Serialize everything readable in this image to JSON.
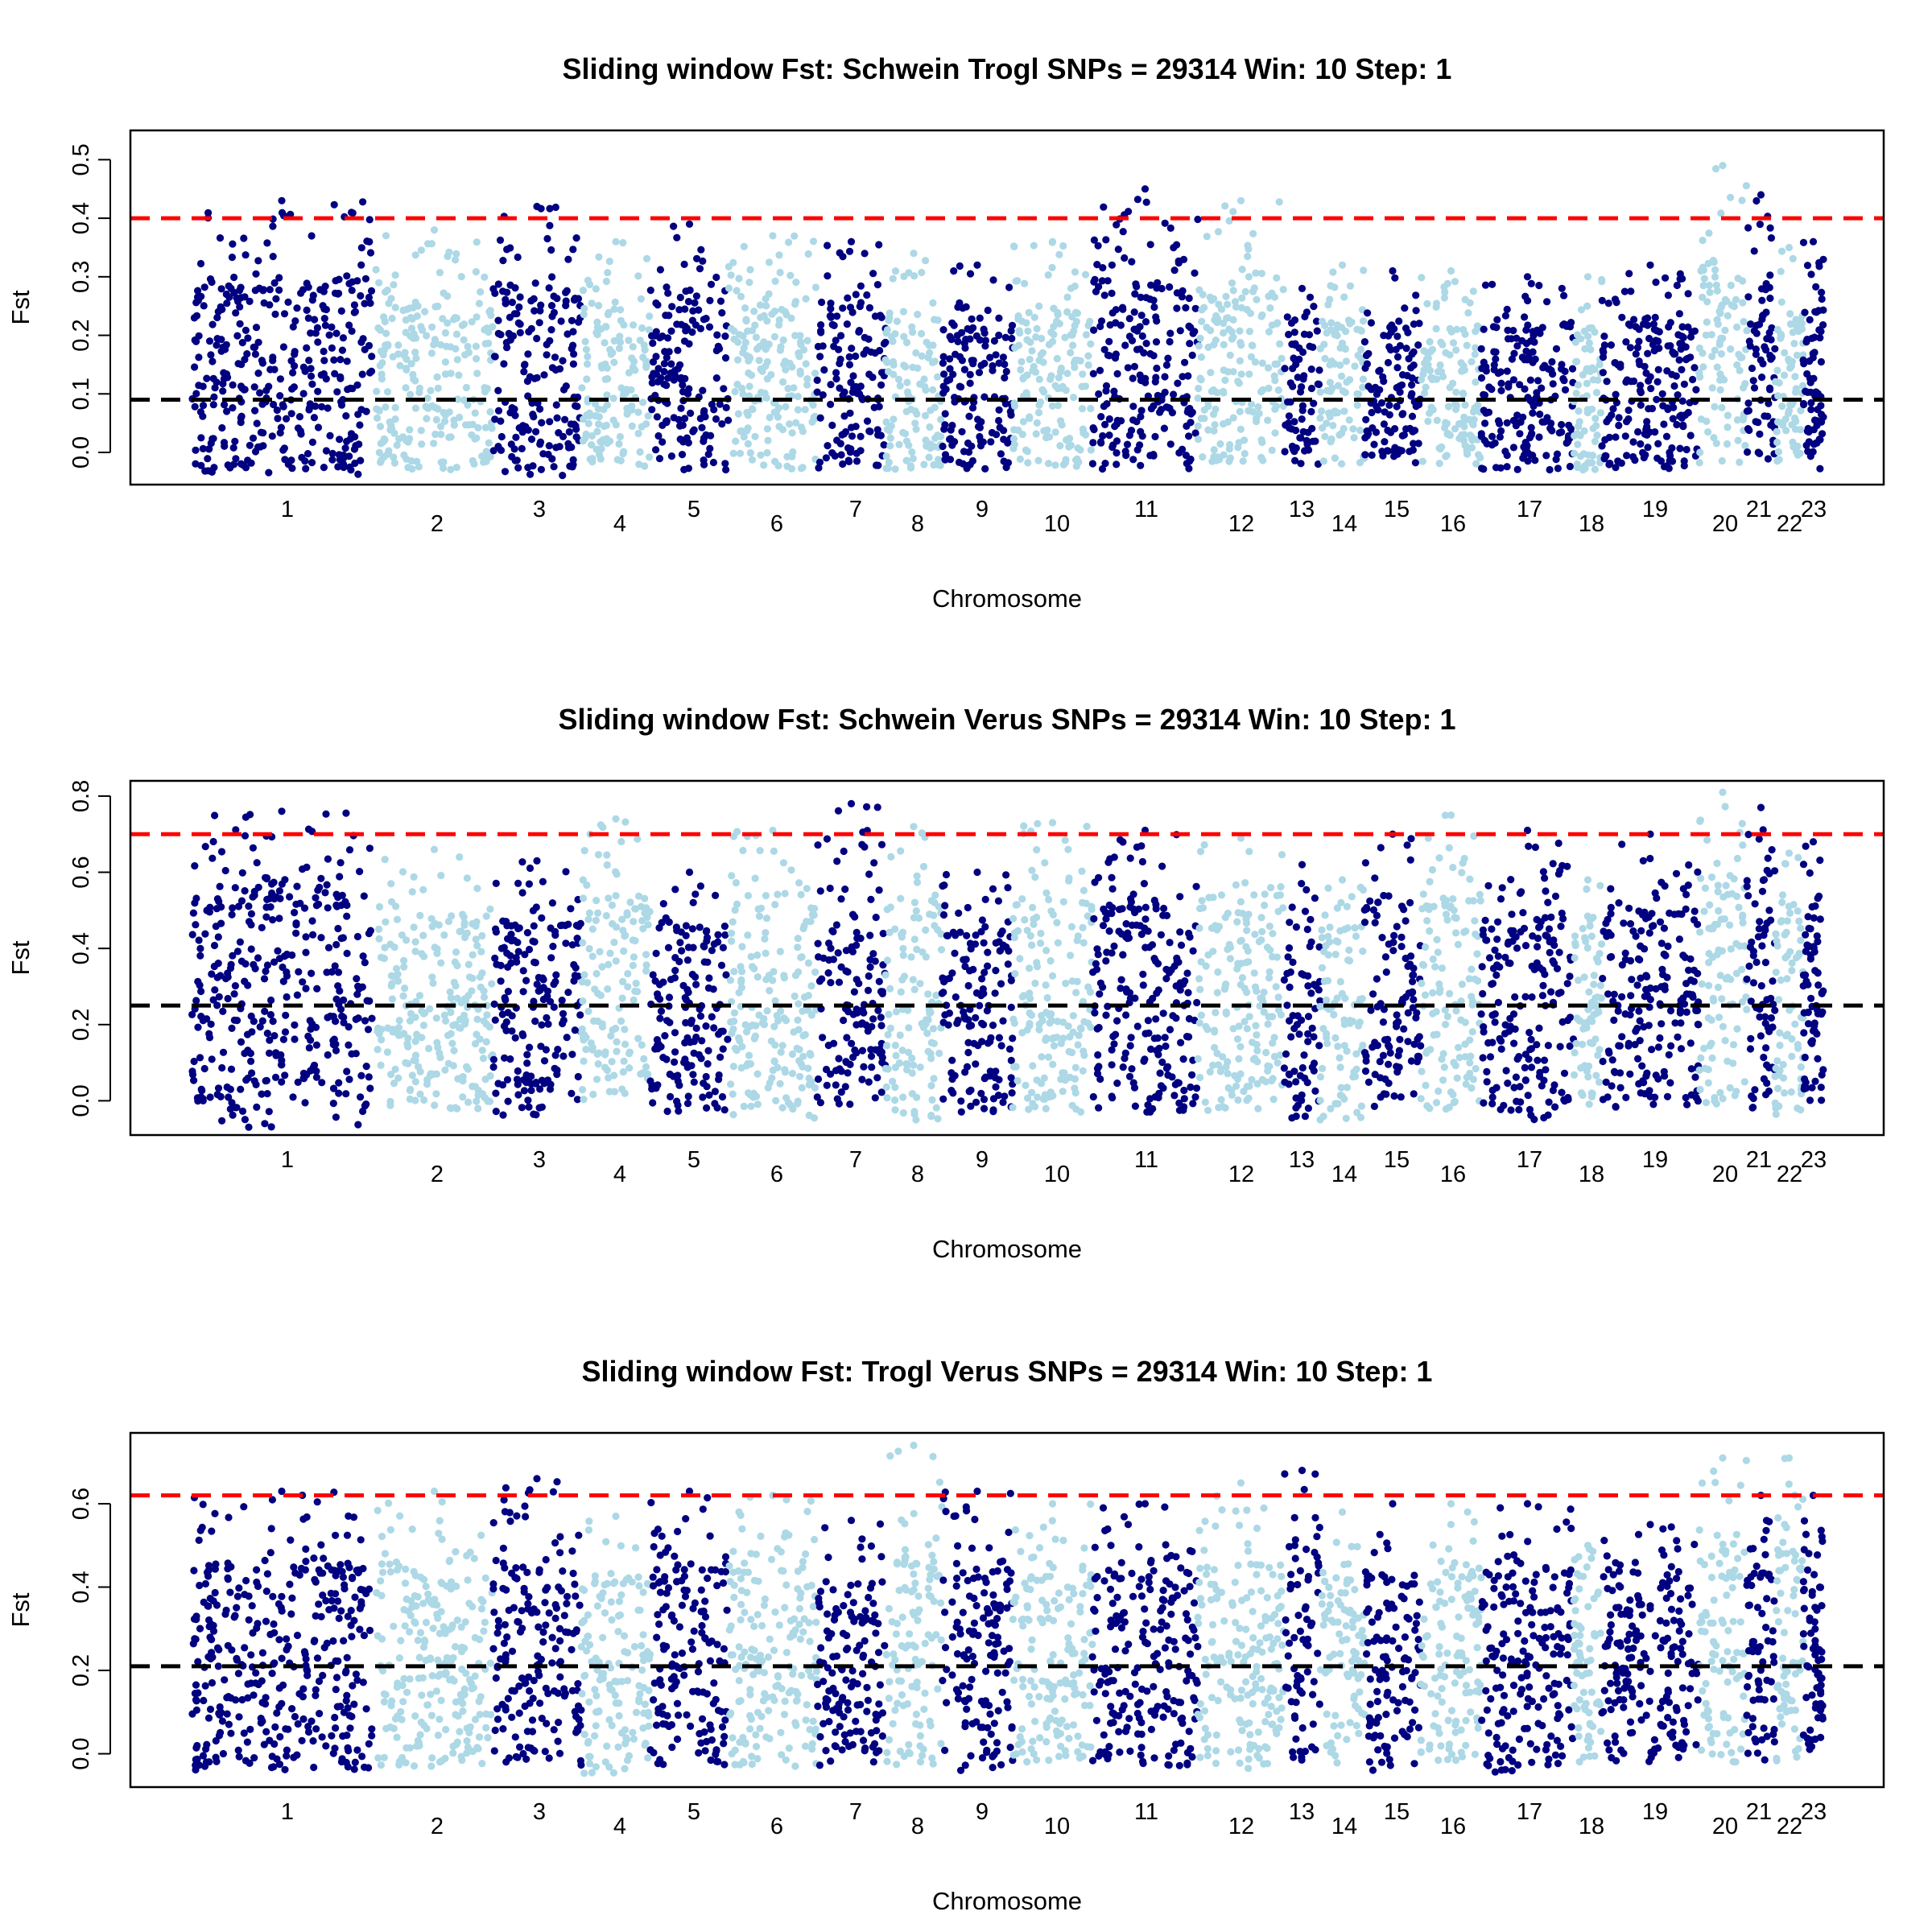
{
  "colors": {
    "dark": "#000080",
    "light": "#add8e6",
    "threshold": "#ff0000",
    "mean": "#000000"
  },
  "chart_data": [
    {
      "type": "scatter",
      "title": "Sliding window Fst: Schwein Trogl SNPs = 29314 Win:  10 Step:  1",
      "xlabel": "Chromosome",
      "ylabel": "Fst",
      "ylim": [
        -0.055,
        0.55
      ],
      "yticks": [
        "0.0",
        "0.1",
        "0.2",
        "0.3",
        "0.4",
        "0.5"
      ],
      "ytick_values": [
        0.0,
        0.1,
        0.2,
        0.3,
        0.4,
        0.5
      ],
      "threshold_line": 0.4,
      "mean_line": 0.09,
      "categories": [
        "1",
        "2",
        "3",
        "4",
        "5",
        "6",
        "7",
        "8",
        "9",
        "10",
        "11",
        "12",
        "13",
        "14",
        "15",
        "16",
        "17",
        "18",
        "19",
        "20",
        "21",
        "22",
        "23"
      ],
      "summary": {
        "min": [
          -0.04,
          -0.03,
          -0.04,
          -0.03,
          -0.03,
          -0.03,
          -0.03,
          -0.03,
          -0.03,
          -0.03,
          -0.03,
          -0.02,
          -0.02,
          -0.02,
          -0.02,
          -0.02,
          -0.03,
          -0.03,
          -0.03,
          -0.02,
          -0.02,
          -0.02,
          -0.03
        ],
        "max": [
          0.43,
          0.38,
          0.42,
          0.36,
          0.39,
          0.37,
          0.36,
          0.34,
          0.32,
          0.36,
          0.45,
          0.43,
          0.28,
          0.32,
          0.31,
          0.31,
          0.3,
          0.3,
          0.32,
          0.49,
          0.44,
          0.35,
          0.36
        ]
      },
      "grid": false,
      "legend": "none"
    },
    {
      "type": "scatter",
      "title": "Sliding window Fst: Schwein Verus SNPs = 29314 Win:  10 Step:  1",
      "xlabel": "Chromosome",
      "ylabel": "Fst",
      "ylim": [
        -0.09,
        0.84
      ],
      "yticks": [
        "0.0",
        "0.2",
        "0.4",
        "0.6",
        "0.8"
      ],
      "ytick_values": [
        0.0,
        0.2,
        0.4,
        0.6,
        0.8
      ],
      "threshold_line": 0.7,
      "mean_line": 0.25,
      "categories": [
        "1",
        "2",
        "3",
        "4",
        "5",
        "6",
        "7",
        "8",
        "9",
        "10",
        "11",
        "12",
        "13",
        "14",
        "15",
        "16",
        "17",
        "18",
        "19",
        "20",
        "21",
        "22",
        "23"
      ],
      "summary": {
        "min": [
          -0.07,
          -0.03,
          -0.04,
          0.0,
          -0.03,
          -0.05,
          -0.02,
          -0.05,
          -0.03,
          -0.03,
          -0.03,
          -0.03,
          -0.05,
          -0.05,
          -0.03,
          -0.03,
          -0.06,
          -0.03,
          -0.02,
          -0.02,
          -0.02,
          -0.05,
          0.0
        ],
        "max": [
          0.76,
          0.66,
          0.63,
          0.74,
          0.6,
          0.71,
          0.78,
          0.72,
          0.6,
          0.73,
          0.71,
          0.69,
          0.62,
          0.58,
          0.7,
          0.75,
          0.71,
          0.58,
          0.7,
          0.81,
          0.77,
          0.65,
          0.68
        ]
      },
      "grid": false,
      "legend": "none"
    },
    {
      "type": "scatter",
      "title": "Sliding window Fst: Trogl Verus SNPs = 29314 Win:  10 Step:  1",
      "xlabel": "Chromosome",
      "ylabel": "Fst",
      "ylim": [
        -0.08,
        0.77
      ],
      "yticks": [
        "0.0",
        "0.2",
        "0.4",
        "0.6"
      ],
      "ytick_values": [
        0.0,
        0.2,
        0.4,
        0.6
      ],
      "threshold_line": 0.62,
      "mean_line": 0.21,
      "categories": [
        "1",
        "2",
        "3",
        "4",
        "5",
        "6",
        "7",
        "8",
        "9",
        "10",
        "11",
        "12",
        "13",
        "14",
        "15",
        "16",
        "17",
        "18",
        "19",
        "20",
        "21",
        "22",
        "23"
      ],
      "summary": {
        "min": [
          -0.04,
          -0.03,
          -0.03,
          -0.05,
          -0.03,
          -0.04,
          -0.03,
          -0.03,
          -0.04,
          -0.02,
          -0.03,
          -0.04,
          -0.03,
          -0.03,
          -0.05,
          -0.02,
          -0.05,
          -0.04,
          -0.02,
          -0.02,
          -0.02,
          -0.02,
          0.0
        ],
        "max": [
          0.63,
          0.63,
          0.66,
          0.57,
          0.63,
          0.62,
          0.56,
          0.74,
          0.63,
          0.6,
          0.6,
          0.65,
          0.68,
          0.58,
          0.6,
          0.6,
          0.6,
          0.5,
          0.55,
          0.71,
          0.62,
          0.71,
          0.62
        ]
      },
      "grid": false,
      "legend": "none"
    }
  ]
}
